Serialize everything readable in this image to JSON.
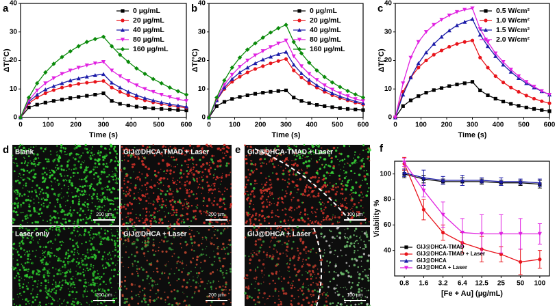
{
  "chart_data": [
    {
      "type": "line",
      "panel_label": "a",
      "xlabel": "Time (s)",
      "ylabel": "ΔT(°C)",
      "x": [
        0,
        30,
        60,
        90,
        120,
        150,
        180,
        210,
        240,
        270,
        300,
        330,
        360,
        390,
        420,
        450,
        480,
        510,
        540,
        570,
        600
      ],
      "xlim": [
        0,
        600
      ],
      "xticks": [
        0,
        100,
        200,
        300,
        400,
        500,
        600
      ],
      "ylim": [
        0,
        40
      ],
      "yticks": [
        0,
        10,
        20,
        30,
        40
      ],
      "legend": "upper right",
      "series": [
        {
          "name": "0 µg/mL",
          "color": "#000000",
          "marker": "square",
          "values": [
            0,
            3.5,
            4.5,
            5.2,
            5.8,
            6.3,
            6.8,
            7.2,
            7.6,
            8,
            8.5,
            5.8,
            4.8,
            4.2,
            3.8,
            3.4,
            3.2,
            3,
            2.8,
            2.6,
            2.5
          ]
        },
        {
          "name": "20 µg/mL",
          "color": "#e8141b",
          "marker": "circle",
          "values": [
            0,
            5,
            7,
            8.5,
            9.6,
            10.5,
            11.2,
            11.8,
            12.2,
            12.5,
            12.8,
            10.5,
            9,
            7.8,
            6.8,
            6,
            5.3,
            4.7,
            4.2,
            3.8,
            3.4
          ]
        },
        {
          "name": "40 µg/mL",
          "color": "#1c1ca8",
          "marker": "triangle-up",
          "values": [
            0,
            5.5,
            8,
            9.8,
            11,
            12,
            13,
            13.7,
            14.3,
            14.8,
            15.2,
            12.2,
            10.5,
            9,
            7.8,
            6.8,
            6,
            5.3,
            4.7,
            4.2,
            3.8
          ]
        },
        {
          "name": "80 µg/mL",
          "color": "#e020e0",
          "marker": "triangle-down",
          "values": [
            0,
            6,
            9.5,
            12,
            13.8,
            15.3,
            16.5,
            17.5,
            18.3,
            19,
            19.5,
            16.5,
            14.5,
            12.8,
            11.3,
            10,
            9,
            8,
            7.2,
            6.4,
            5.8
          ]
        },
        {
          "name": "160 µg/mL",
          "color": "#0a8a0a",
          "marker": "diamond",
          "values": [
            0,
            7,
            12,
            15.8,
            18.8,
            21.2,
            23.2,
            25,
            26.5,
            27.5,
            28.3,
            25,
            22,
            19.5,
            17.2,
            15.3,
            13.5,
            12,
            10.5,
            9.2,
            8
          ]
        }
      ]
    },
    {
      "type": "line",
      "panel_label": "b",
      "xlabel": "Time (s)",
      "ylabel": "ΔT(°C)",
      "x": [
        0,
        30,
        60,
        90,
        120,
        150,
        180,
        210,
        240,
        270,
        300,
        330,
        360,
        390,
        420,
        450,
        480,
        510,
        540,
        570,
        600
      ],
      "xlim": [
        0,
        600
      ],
      "xticks": [
        0,
        100,
        200,
        300,
        400,
        500,
        600
      ],
      "ylim": [
        0,
        40
      ],
      "yticks": [
        0,
        10,
        20,
        30,
        40
      ],
      "legend": "upper right",
      "series": [
        {
          "name": "0 µg/mL",
          "color": "#000000",
          "marker": "square",
          "values": [
            0,
            4,
            5.5,
            6.5,
            7.2,
            7.8,
            8.3,
            8.7,
            9,
            9.3,
            9.5,
            7,
            5.8,
            5,
            4.4,
            4,
            3.6,
            3.3,
            3,
            2.8,
            2.6
          ]
        },
        {
          "name": "20 µg/mL",
          "color": "#e8141b",
          "marker": "circle",
          "values": [
            0,
            6,
            10,
            12.5,
            14.3,
            15.8,
            17,
            18,
            19,
            19.8,
            20.5,
            16.5,
            14,
            12,
            10.5,
            9,
            7.8,
            6.8,
            6,
            5.2,
            4.6
          ]
        },
        {
          "name": "40 µg/mL",
          "color": "#1c1ca8",
          "marker": "triangle-up",
          "values": [
            0,
            6,
            10.5,
            13.5,
            15.8,
            17.5,
            19,
            20.3,
            21.3,
            22.2,
            23,
            18.5,
            15.5,
            13.2,
            11.3,
            9.8,
            8.5,
            7.4,
            6.5,
            5.7,
            5
          ]
        },
        {
          "name": "80 µg/mL",
          "color": "#e020e0",
          "marker": "triangle-down",
          "values": [
            0,
            6.5,
            11.5,
            15,
            17.8,
            20,
            21.8,
            23.3,
            24.7,
            26,
            27,
            21.5,
            18,
            15.3,
            13.2,
            11.3,
            9.8,
            8.5,
            7.5,
            6.5,
            5.8
          ]
        },
        {
          "name": "160 µg/mL",
          "color": "#0a8a0a",
          "marker": "diamond",
          "values": [
            0,
            7,
            13,
            17.5,
            21,
            23.8,
            26,
            28,
            29.8,
            31.3,
            32.5,
            26.5,
            22.5,
            19.2,
            16.5,
            14.2,
            12.3,
            10.7,
            9.3,
            8.1,
            7
          ]
        }
      ]
    },
    {
      "type": "line",
      "panel_label": "c",
      "xlabel": "Time (s)",
      "ylabel": "ΔT(°C)",
      "x": [
        0,
        30,
        60,
        90,
        120,
        150,
        180,
        210,
        240,
        270,
        300,
        330,
        360,
        390,
        420,
        450,
        480,
        510,
        540,
        570,
        600
      ],
      "xlim": [
        0,
        600
      ],
      "xticks": [
        0,
        100,
        200,
        300,
        400,
        500,
        600
      ],
      "ylim": [
        0,
        40
      ],
      "yticks": [
        0,
        10,
        20,
        30,
        40
      ],
      "legend": "upper right",
      "series": [
        {
          "name": "0.5 W/cm²",
          "color": "#000000",
          "marker": "square",
          "values": [
            0,
            4,
            6,
            7.5,
            8.7,
            9.6,
            10.3,
            11,
            11.6,
            12,
            12.5,
            9.5,
            7.8,
            6.6,
            5.6,
            4.8,
            4.1,
            3.5,
            3,
            2.6,
            2.2
          ]
        },
        {
          "name": "1.0 W/cm²",
          "color": "#e8141b",
          "marker": "circle",
          "values": [
            0,
            9,
            14,
            17.5,
            20,
            22,
            23.5,
            24.8,
            25.8,
            26.5,
            27,
            21,
            17.5,
            14.5,
            12.3,
            10.5,
            9,
            7.7,
            6.6,
            5.7,
            5
          ]
        },
        {
          "name": "1.5 W/cm²",
          "color": "#1c1ca8",
          "marker": "triangle-up",
          "values": [
            0,
            8,
            14,
            19,
            22.8,
            25.8,
            28.3,
            30.5,
            32.3,
            33.5,
            34.5,
            29,
            25,
            21.5,
            18.5,
            16,
            13.8,
            12,
            10.5,
            9.2,
            8
          ]
        },
        {
          "name": "2.0 W/cm²",
          "color": "#e020e0",
          "marker": "triangle-down",
          "values": [
            0,
            12,
            21,
            26.5,
            30,
            32.5,
            34.3,
            35.8,
            37,
            37.8,
            38.3,
            31,
            26.5,
            22.5,
            19.5,
            16.8,
            14.5,
            12.5,
            10.8,
            9.3,
            8
          ]
        }
      ]
    },
    {
      "type": "line",
      "panel_label": "f",
      "xlabel": "[Fe + Au] (µg/mL)",
      "ylabel": "Viability %",
      "categories": [
        "0.8",
        "1.6",
        "3.2",
        "6.4",
        "12.5",
        "25",
        "50",
        "100"
      ],
      "ylim": [
        20,
        110
      ],
      "yticks": [
        40,
        60,
        80,
        100
      ],
      "legend": "lower left",
      "series": [
        {
          "name": "GIJ@DHCA-TMAD",
          "color": "#000000",
          "marker": "square",
          "values": [
            100,
            96,
            94,
            94,
            94,
            93,
            93,
            92
          ],
          "errors": [
            3,
            3,
            2,
            3,
            2,
            2,
            2,
            3
          ]
        },
        {
          "name": "GIJ@DHCA-TMAD + Laser",
          "color": "#e8141b",
          "marker": "circle",
          "values": [
            108,
            72,
            54,
            46,
            41,
            37,
            31,
            33
          ],
          "errors": [
            5,
            8,
            6,
            8,
            10,
            6,
            10,
            7
          ]
        },
        {
          "name": "GIJ@DHCA",
          "color": "#1c1ca8",
          "marker": "triangle-up",
          "values": [
            101,
            97,
            95,
            95,
            95,
            94,
            94,
            93
          ],
          "errors": [
            3,
            6,
            3,
            4,
            2,
            3,
            2,
            3
          ]
        },
        {
          "name": "GIJ@DHCA + Laser",
          "color": "#e020e0",
          "marker": "triangle-down",
          "values": [
            109,
            87,
            68,
            54,
            53,
            53,
            53,
            53
          ],
          "errors": [
            3,
            5,
            10,
            11,
            15,
            15,
            12,
            8
          ]
        }
      ]
    }
  ],
  "micrographs": [
    {
      "panel_label": "d",
      "images": [
        {
          "label": "Blank",
          "scale_bar": "200 µm"
        },
        {
          "label": "GIJ@DHCA-TMAD + Laser",
          "scale_bar": "200 µm"
        },
        {
          "label": "Laser only",
          "scale_bar": "200 µm"
        },
        {
          "label": "GIJ@DHCA + Laser",
          "scale_bar": "200 µm"
        }
      ]
    },
    {
      "panel_label": "e",
      "images": [
        {
          "label": "GIJ@DHCA-TMAD + Laser",
          "scale_bar": "100 µm"
        },
        {
          "label": "GIJ@DHCA + Laser",
          "scale_bar": "100 µm"
        }
      ]
    }
  ]
}
